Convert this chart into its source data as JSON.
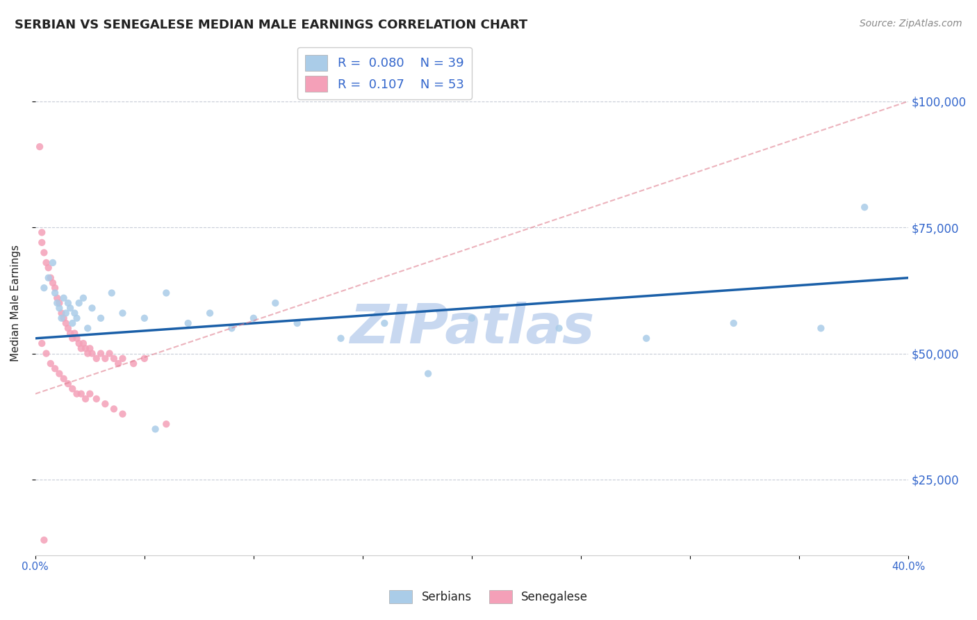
{
  "title": "SERBIAN VS SENEGALESE MEDIAN MALE EARNINGS CORRELATION CHART",
  "source": "Source: ZipAtlas.com",
  "ylabel": "Median Male Earnings",
  "xlim": [
    0.0,
    0.4
  ],
  "ylim": [
    10000,
    110000
  ],
  "xticks": [
    0.0,
    0.05,
    0.1,
    0.15,
    0.2,
    0.25,
    0.3,
    0.35,
    0.4
  ],
  "xticklabels": [
    "0.0%",
    "",
    "",
    "",
    "",
    "",
    "",
    "",
    "40.0%"
  ],
  "ytick_positions": [
    25000,
    50000,
    75000,
    100000
  ],
  "ytick_labels": [
    "$25,000",
    "$50,000",
    "$75,000",
    "$100,000"
  ],
  "serbian_R": 0.08,
  "serbian_N": 39,
  "senegalese_R": 0.107,
  "senegalese_N": 53,
  "serbian_color": "#aacce8",
  "senegalese_color": "#f4a0b8",
  "serbian_line_color": "#1a5fa8",
  "senegalese_line_color": "#e08090",
  "legend_R_color": "#3366cc",
  "watermark": "ZIPatlas",
  "watermark_color": "#c8d8f0",
  "grid_color": "#c8ccd8",
  "title_color": "#222222",
  "axis_label_color": "#3366cc",
  "serbian_x": [
    0.004,
    0.006,
    0.008,
    0.009,
    0.01,
    0.011,
    0.012,
    0.013,
    0.014,
    0.015,
    0.016,
    0.017,
    0.018,
    0.019,
    0.02,
    0.022,
    0.024,
    0.026,
    0.03,
    0.035,
    0.04,
    0.05,
    0.06,
    0.07,
    0.08,
    0.09,
    0.1,
    0.12,
    0.14,
    0.16,
    0.18,
    0.2,
    0.24,
    0.28,
    0.32,
    0.36,
    0.38,
    0.11,
    0.055
  ],
  "serbian_y": [
    63000,
    65000,
    68000,
    62000,
    60000,
    59000,
    57000,
    61000,
    58000,
    60000,
    59000,
    56000,
    58000,
    57000,
    60000,
    61000,
    55000,
    59000,
    57000,
    62000,
    58000,
    57000,
    62000,
    56000,
    58000,
    55000,
    57000,
    56000,
    53000,
    56000,
    46000,
    57000,
    55000,
    53000,
    56000,
    55000,
    79000,
    60000,
    35000
  ],
  "senegalese_x": [
    0.002,
    0.003,
    0.004,
    0.005,
    0.006,
    0.007,
    0.008,
    0.009,
    0.01,
    0.011,
    0.012,
    0.013,
    0.014,
    0.015,
    0.016,
    0.017,
    0.018,
    0.019,
    0.02,
    0.021,
    0.022,
    0.023,
    0.024,
    0.025,
    0.026,
    0.028,
    0.03,
    0.032,
    0.034,
    0.036,
    0.038,
    0.04,
    0.045,
    0.05,
    0.003,
    0.005,
    0.007,
    0.009,
    0.011,
    0.013,
    0.015,
    0.017,
    0.019,
    0.021,
    0.023,
    0.025,
    0.028,
    0.032,
    0.036,
    0.04,
    0.003,
    0.06,
    0.004
  ],
  "senegalese_y": [
    91000,
    72000,
    70000,
    68000,
    67000,
    65000,
    64000,
    63000,
    61000,
    60000,
    58000,
    57000,
    56000,
    55000,
    54000,
    53000,
    54000,
    53000,
    52000,
    51000,
    52000,
    51000,
    50000,
    51000,
    50000,
    49000,
    50000,
    49000,
    50000,
    49000,
    48000,
    49000,
    48000,
    49000,
    52000,
    50000,
    48000,
    47000,
    46000,
    45000,
    44000,
    43000,
    42000,
    42000,
    41000,
    42000,
    41000,
    40000,
    39000,
    38000,
    74000,
    36000,
    13000
  ],
  "serbian_line_x": [
    0.0,
    0.4
  ],
  "serbian_line_y": [
    53000,
    65000
  ],
  "senegalese_line_x": [
    0.0,
    0.4
  ],
  "senegalese_line_y": [
    42000,
    100000
  ]
}
